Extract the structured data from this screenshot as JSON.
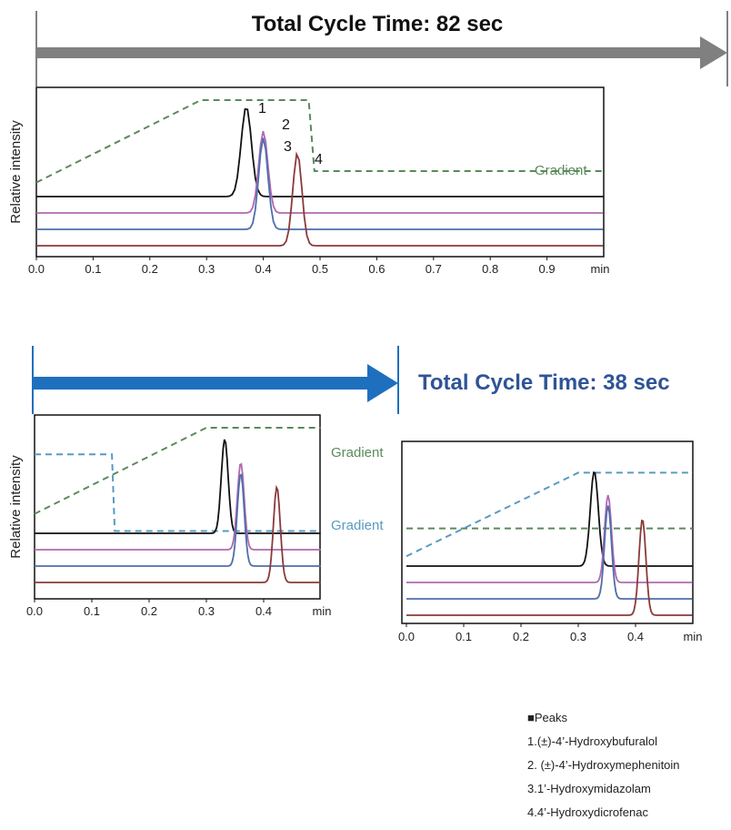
{
  "top": {
    "title": "Total Cycle Time: 82 sec",
    "arrow_color": "#808080",
    "title_color": "#111111"
  },
  "bottom": {
    "title": "Total Cycle Time: 38 sec",
    "arrow_color": "#1f6fbf",
    "title_color": "#2f5496"
  },
  "legend": {
    "heading": "■Peaks",
    "items": [
      "1.(±)-4’-Hydroxybufuralol",
      "2. (±)-4’-Hydroxymephenitoin",
      "3.1’-Hydroxymidazolam",
      "4.4’-Hydroxydicrofenac"
    ]
  },
  "colors": {
    "peak1": "#111111",
    "peak2": "#b069b0",
    "peak3": "#4e6eab",
    "peak4": "#8a3a3a",
    "gradient_green": "#5a8a5a",
    "gradient_blue": "#5a9ac0"
  },
  "chart_data": [
    {
      "type": "line",
      "xlabel": "min",
      "ylabel": "Relative intensity",
      "xlim": [
        0,
        1.0
      ],
      "xticks": [
        "0.0",
        "0.1",
        "0.2",
        "0.3",
        "0.4",
        "0.5",
        "0.6",
        "0.7",
        "0.8",
        "0.9"
      ],
      "series": [
        {
          "peak": "1",
          "baseline": 0.3,
          "peak_x": 0.37,
          "peak_height": 0.66,
          "width": 0.009
        },
        {
          "peak": "2",
          "baseline": 0.18,
          "peak_x": 0.4,
          "peak_height": 0.6,
          "width": 0.008
        },
        {
          "peak": "3",
          "baseline": 0.06,
          "peak_x": 0.4,
          "peak_height": 0.67,
          "width": 0.008
        },
        {
          "peak": "4",
          "baseline": -0.06,
          "peak_x": 0.46,
          "peak_height": 0.68,
          "width": 0.008
        }
      ],
      "gradients": [
        {
          "label": "Gradient",
          "color": "green",
          "points": [
            [
              0,
              0.42
            ],
            [
              0.29,
              1.0
            ],
            [
              0.48,
              1.0
            ],
            [
              0.49,
              0.5
            ],
            [
              1.0,
              0.5
            ]
          ]
        }
      ],
      "peak_labels": [
        "1",
        "2",
        "3",
        "4"
      ]
    },
    {
      "type": "line",
      "xlabel": "min",
      "ylabel": "Relative intensity",
      "xlim": [
        0,
        0.5
      ],
      "xticks": [
        "0.0",
        "0.1",
        "0.2",
        "0.3",
        "0.4"
      ],
      "series": [
        {
          "peak": "1",
          "baseline": 0.32,
          "peak_x": 0.332,
          "peak_height": 0.65,
          "width": 0.006
        },
        {
          "peak": "2",
          "baseline": 0.2,
          "peak_x": 0.36,
          "peak_height": 0.6,
          "width": 0.006
        },
        {
          "peak": "3",
          "baseline": 0.08,
          "peak_x": 0.36,
          "peak_height": 0.64,
          "width": 0.006
        },
        {
          "peak": "4",
          "baseline": -0.04,
          "peak_x": 0.423,
          "peak_height": 0.66,
          "width": 0.006
        }
      ],
      "gradients": [
        {
          "label": "Gradient",
          "color": "green",
          "points": [
            [
              0,
              0.45
            ],
            [
              0.3,
              1.0
            ],
            [
              0.5,
              1.0
            ]
          ]
        },
        {
          "label": "Gradient",
          "color": "blue",
          "points": [
            [
              0,
              0.83
            ],
            [
              0.135,
              0.83
            ],
            [
              0.14,
              0.34
            ],
            [
              0.5,
              0.34
            ]
          ]
        }
      ]
    },
    {
      "type": "line",
      "xlabel": "min",
      "xlim": [
        0,
        0.5
      ],
      "xticks": [
        "0.0",
        "0.1",
        "0.2",
        "0.3",
        "0.4"
      ],
      "series": [
        {
          "peak": "1",
          "baseline": 0.28,
          "peak_x": 0.328,
          "peak_height": 0.65,
          "width": 0.007
        },
        {
          "peak": "2",
          "baseline": 0.16,
          "peak_x": 0.352,
          "peak_height": 0.6,
          "width": 0.006
        },
        {
          "peak": "3",
          "baseline": 0.04,
          "peak_x": 0.352,
          "peak_height": 0.64,
          "width": 0.006
        },
        {
          "peak": "4",
          "baseline": -0.08,
          "peak_x": 0.412,
          "peak_height": 0.66,
          "width": 0.006
        }
      ],
      "gradients": [
        {
          "color": "blue",
          "points": [
            [
              0,
              0.34
            ],
            [
              0.3,
              0.88
            ],
            [
              0.5,
              0.88
            ]
          ]
        },
        {
          "color": "green",
          "points": [
            [
              0,
              0.52
            ],
            [
              0.5,
              0.52
            ]
          ]
        }
      ]
    }
  ]
}
